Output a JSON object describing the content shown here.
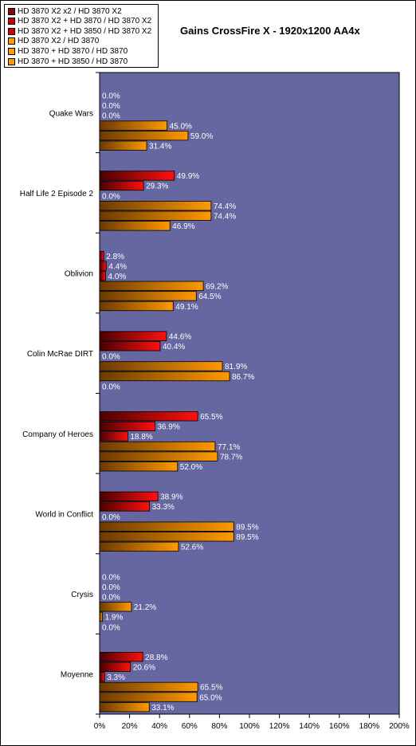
{
  "chart_data": {
    "type": "bar",
    "orientation": "horizontal",
    "title": "Gains CrossFire X - 1920x1200 AA4x",
    "xlabel": "",
    "ylabel": "",
    "xlim": [
      0,
      200
    ],
    "x_ticks": [
      "0%",
      "20%",
      "40%",
      "60%",
      "80%",
      "100%",
      "120%",
      "140%",
      "160%",
      "180%",
      "200%"
    ],
    "grid": false,
    "legend_position": "top-left",
    "plot_background": "#6666a0",
    "categories": [
      "Quake Wars",
      "Half Life 2 Episode 2",
      "Oblivion",
      "Colin McRae DIRT",
      "Company of Heroes",
      "World in Conflict",
      "Crysis",
      "Moyenne"
    ],
    "series": [
      {
        "name": "HD 3870 X2 x2 / HD 3870 X2",
        "color": "#8b0000",
        "values": [
          0.0,
          49.9,
          2.8,
          44.6,
          65.5,
          38.9,
          0.0,
          28.8
        ],
        "labels": [
          "0.0%",
          "49.9%",
          "2.8%",
          "44.6%",
          "65.5%",
          "38.9%",
          "0.0%",
          "28.8%"
        ]
      },
      {
        "name": "HD 3870 X2 + HD 3870 / HD 3870 X2",
        "color": "#cc0000",
        "values": [
          0.0,
          29.3,
          4.4,
          40.4,
          36.9,
          33.3,
          0.0,
          20.6
        ],
        "labels": [
          "0.0%",
          "29.3%",
          "4.4%",
          "40.4%",
          "36.9%",
          "33.3%",
          "0.0%",
          "20.6%"
        ]
      },
      {
        "name": "HD 3870 X2 + HD 3850 / HD 3870 X2",
        "color": "#cc0000",
        "values": [
          0.0,
          0.0,
          4.0,
          0.0,
          18.8,
          0.0,
          0.0,
          3.3
        ],
        "labels": [
          "0.0%",
          "0.0%",
          "4.0%",
          "0.0%",
          "18.8%",
          "0.0%",
          "0.0%",
          "3.3%"
        ]
      },
      {
        "name": "HD 3870 X2 / HD 3870",
        "color": "#ff9900",
        "values": [
          45.0,
          74.4,
          69.2,
          81.9,
          77.1,
          89.5,
          21.2,
          65.5
        ],
        "labels": [
          "45.0%",
          "74.4%",
          "69.2%",
          "81.9%",
          "77.1%",
          "89.5%",
          "21.2%",
          "65.5%"
        ]
      },
      {
        "name": "HD 3870 + HD 3870 / HD 3870",
        "color": "#ff9900",
        "values": [
          59.0,
          74.4,
          64.5,
          86.7,
          78.7,
          89.5,
          1.9,
          65.0
        ],
        "labels": [
          "59.0%",
          "74.4%",
          "64.5%",
          "86.7%",
          "78.7%",
          "89.5%",
          "1.9%",
          "65.0%"
        ]
      },
      {
        "name": "HD 3870 + HD 3850 / HD 3870",
        "color": "#ff9900",
        "values": [
          31.4,
          46.9,
          49.1,
          0.0,
          52.0,
          52.6,
          0.0,
          33.1
        ],
        "labels": [
          "31.4%",
          "46.9%",
          "49.1%",
          "0.0%",
          "52.0%",
          "52.6%",
          "0.0%",
          "33.1%"
        ]
      }
    ]
  }
}
